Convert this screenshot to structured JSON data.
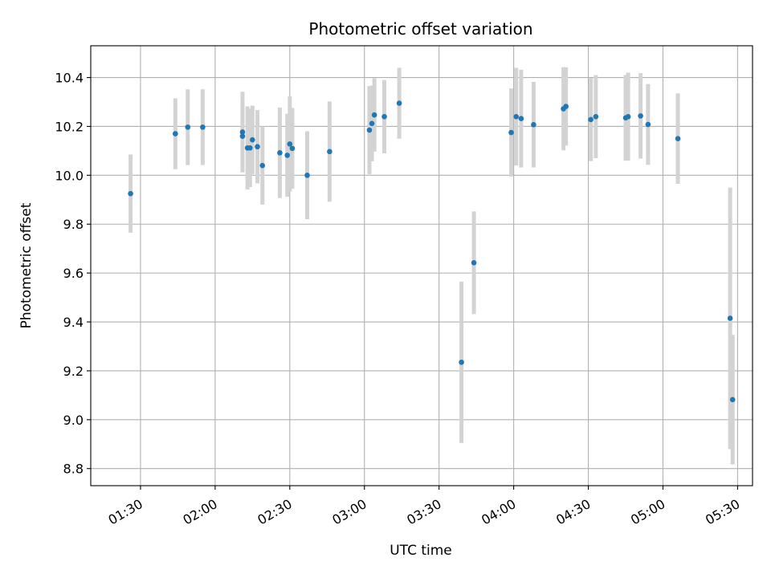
{
  "chart_data": {
    "type": "scatter",
    "title": "Photometric offset variation",
    "xlabel": "UTC time",
    "ylabel": "Photometric offset",
    "x_unit": "hh:mm UTC",
    "xlim": [
      "01:10",
      "05:36"
    ],
    "ylim": [
      8.73,
      10.53
    ],
    "x_ticks": [
      "01:30",
      "02:00",
      "02:30",
      "03:00",
      "03:30",
      "04:00",
      "04:30",
      "05:00",
      "05:30"
    ],
    "y_ticks": [
      "8.8",
      "9.0",
      "9.2",
      "9.4",
      "9.6",
      "9.8",
      "10.0",
      "10.2",
      "10.4"
    ],
    "grid": true,
    "point_color": "#1f77b4",
    "errorbar_color": "#d3d3d3",
    "points": [
      {
        "x": "01:26",
        "y": 9.925,
        "err": 0.16
      },
      {
        "x": "01:44",
        "y": 10.17,
        "err": 0.145
      },
      {
        "x": "01:49",
        "y": 10.197,
        "err": 0.155
      },
      {
        "x": "01:55",
        "y": 10.197,
        "err": 0.155
      },
      {
        "x": "02:11",
        "y": 10.177,
        "err": 0.165
      },
      {
        "x": "02:11",
        "y": 10.16,
        "err": 0.14
      },
      {
        "x": "02:13",
        "y": 10.112,
        "err": 0.17
      },
      {
        "x": "02:14",
        "y": 10.112,
        "err": 0.16
      },
      {
        "x": "02:15",
        "y": 10.145,
        "err": 0.14
      },
      {
        "x": "02:17",
        "y": 10.117,
        "err": 0.15
      },
      {
        "x": "02:19",
        "y": 10.04,
        "err": 0.16
      },
      {
        "x": "02:26",
        "y": 10.092,
        "err": 0.185
      },
      {
        "x": "02:29",
        "y": 10.082,
        "err": 0.17
      },
      {
        "x": "02:30",
        "y": 10.128,
        "err": 0.195
      },
      {
        "x": "02:31",
        "y": 10.11,
        "err": 0.165
      },
      {
        "x": "02:37",
        "y": 10.0,
        "err": 0.18
      },
      {
        "x": "02:46",
        "y": 10.097,
        "err": 0.205
      },
      {
        "x": "03:02",
        "y": 10.185,
        "err": 0.18
      },
      {
        "x": "03:03",
        "y": 10.212,
        "err": 0.155
      },
      {
        "x": "03:04",
        "y": 10.247,
        "err": 0.15
      },
      {
        "x": "03:08",
        "y": 10.24,
        "err": 0.15
      },
      {
        "x": "03:14",
        "y": 10.295,
        "err": 0.145
      },
      {
        "x": "03:39",
        "y": 9.235,
        "err": 0.33
      },
      {
        "x": "03:44",
        "y": 9.642,
        "err": 0.21
      },
      {
        "x": "03:59",
        "y": 10.175,
        "err": 0.18
      },
      {
        "x": "04:01",
        "y": 10.24,
        "err": 0.2
      },
      {
        "x": "04:03",
        "y": 10.232,
        "err": 0.2
      },
      {
        "x": "04:08",
        "y": 10.207,
        "err": 0.175
      },
      {
        "x": "04:20",
        "y": 10.272,
        "err": 0.17
      },
      {
        "x": "04:21",
        "y": 10.282,
        "err": 0.16
      },
      {
        "x": "04:31",
        "y": 10.228,
        "err": 0.17
      },
      {
        "x": "04:33",
        "y": 10.24,
        "err": 0.17
      },
      {
        "x": "04:45",
        "y": 10.235,
        "err": 0.175
      },
      {
        "x": "04:46",
        "y": 10.24,
        "err": 0.18
      },
      {
        "x": "04:51",
        "y": 10.243,
        "err": 0.175
      },
      {
        "x": "04:54",
        "y": 10.208,
        "err": 0.165
      },
      {
        "x": "05:06",
        "y": 10.15,
        "err": 0.185
      },
      {
        "x": "05:27",
        "y": 9.415,
        "err": 0.535
      },
      {
        "x": "05:28",
        "y": 9.082,
        "err": 0.265
      }
    ]
  }
}
